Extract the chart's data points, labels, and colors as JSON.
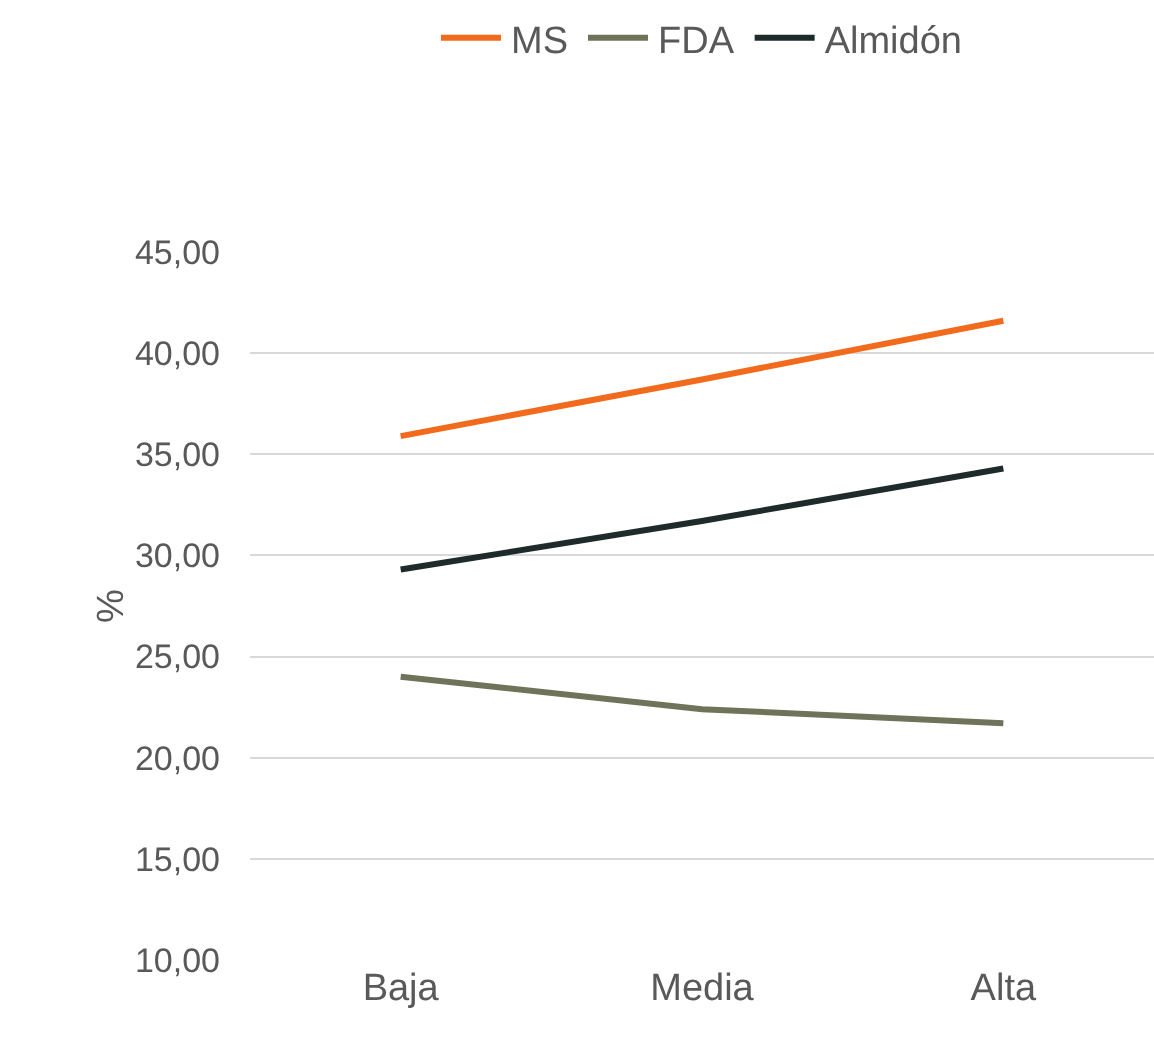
{
  "chart_data": {
    "type": "line",
    "ylabel": "%",
    "categories": [
      "Baja",
      "Media",
      "Alta"
    ],
    "series": [
      {
        "name": "MS",
        "color": "#f26b1d",
        "values": [
          35.9,
          38.7,
          41.6
        ]
      },
      {
        "name": "FDA",
        "color": "#6f735a",
        "values": [
          24.0,
          22.4,
          21.7
        ]
      },
      {
        "name": "Almidón",
        "color": "#1f2b2b",
        "values": [
          29.3,
          31.7,
          34.3
        ]
      }
    ],
    "ylim": [
      10,
      45
    ],
    "yticks": [
      {
        "value": 10,
        "label": "10,00"
      },
      {
        "value": 15,
        "label": "15,00"
      },
      {
        "value": 20,
        "label": "20,00"
      },
      {
        "value": 25,
        "label": "25,00"
      },
      {
        "value": 30,
        "label": "30,00"
      },
      {
        "value": 35,
        "label": "35,00"
      },
      {
        "value": 40,
        "label": "40,00"
      },
      {
        "value": 45,
        "label": "45,00"
      }
    ],
    "grid": "y",
    "legend": "top",
    "marker": "none",
    "line_style": "solid"
  }
}
